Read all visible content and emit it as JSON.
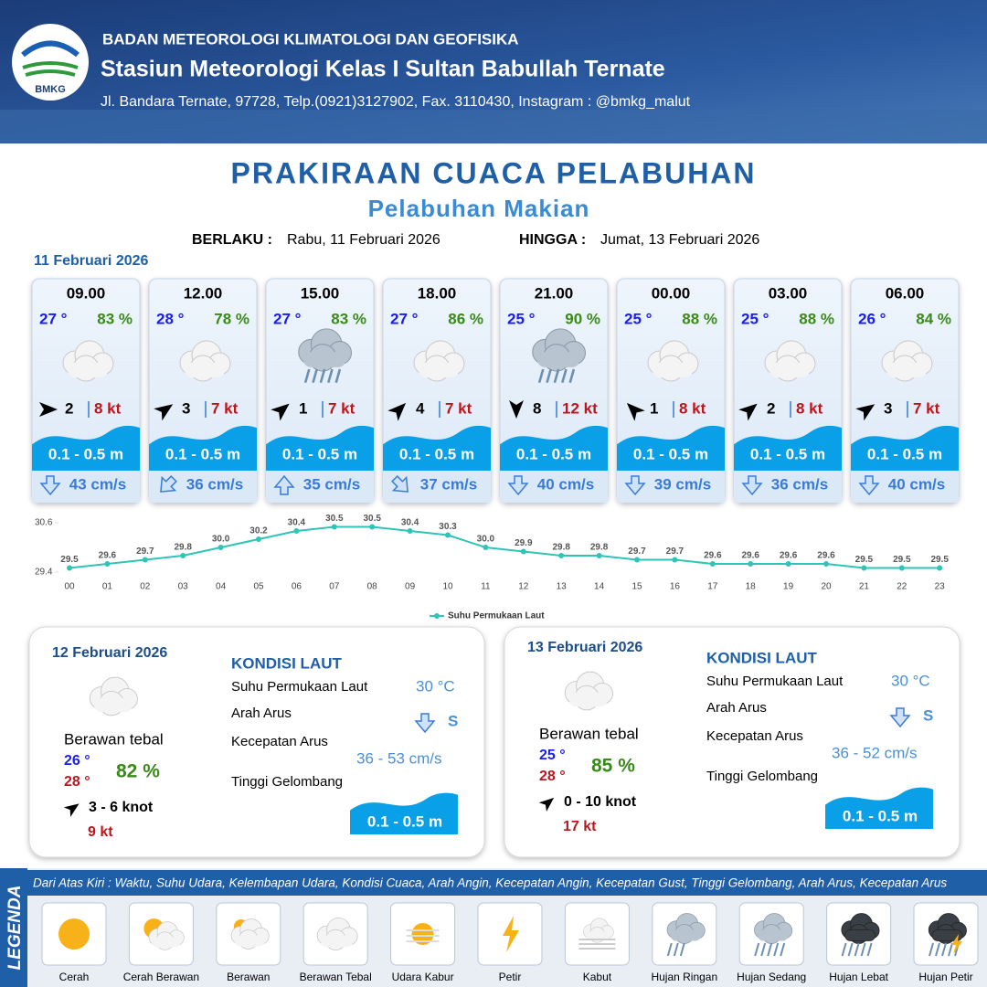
{
  "header": {
    "logo": "BMKG",
    "agency": "BADAN METEOROLOGI KLIMATOLOGI DAN GEOFISIKA",
    "station": "Stasiun Meteorologi Kelas I Sultan Babullah Ternate",
    "address": "Jl. Bandara Ternate, 97728, Telp.(0921)3127902, Fax. 3110430, Instagram : @bmkg_malut"
  },
  "title": "PRAKIRAAN CUACA PELABUHAN",
  "subtitle": "Pelabuhan Makian",
  "validity": {
    "from_label": "BERLAKU :",
    "from": "Rabu, 11 Februari 2026",
    "to_label": "HINGGA :",
    "to": "Jumat, 13 Februari 2026"
  },
  "forecast": {
    "date": "11 Februari 2026",
    "cards": [
      {
        "time": "09.00",
        "temp": "27 °",
        "humidity": "83 %",
        "weather": "cloudy",
        "wind_heading": 0,
        "wind": "2",
        "gust": "8 kt",
        "wave": "0.1 - 0.5 m",
        "current_heading": 0,
        "current": "43 cm/s"
      },
      {
        "time": "12.00",
        "temp": "28 °",
        "humidity": "78 %",
        "weather": "cloudy",
        "wind_heading": -35,
        "wind": "3",
        "gust": "7 kt",
        "wave": "0.1 - 0.5 m",
        "current_heading": 45,
        "current": "36 cm/s"
      },
      {
        "time": "15.00",
        "temp": "27 °",
        "humidity": "83 %",
        "weather": "rain",
        "wind_heading": -40,
        "wind": "1",
        "gust": "7 kt",
        "wave": "0.1 - 0.5 m",
        "current_heading": 180,
        "current": "35 cm/s"
      },
      {
        "time": "18.00",
        "temp": "27 °",
        "humidity": "86 %",
        "weather": "cloudy",
        "wind_heading": -45,
        "wind": "4",
        "gust": "7 kt",
        "wave": "0.1 - 0.5 m",
        "current_heading": -45,
        "current": "37 cm/s"
      },
      {
        "time": "21.00",
        "temp": "25 °",
        "humidity": "90 %",
        "weather": "rain",
        "wind_heading": 90,
        "wind": "8",
        "gust": "12 kt",
        "wave": "0.1 - 0.5 m",
        "current_heading": 0,
        "current": "40 cm/s"
      },
      {
        "time": "00.00",
        "temp": "25 °",
        "humidity": "88 %",
        "weather": "cloudy",
        "wind_heading": -135,
        "wind": "1",
        "gust": "8 kt",
        "wave": "0.1 - 0.5 m",
        "current_heading": 0,
        "current": "39 cm/s"
      },
      {
        "time": "03.00",
        "temp": "25 °",
        "humidity": "88 %",
        "weather": "cloudy",
        "wind_heading": -40,
        "wind": "2",
        "gust": "8 kt",
        "wave": "0.1 - 0.5 m",
        "current_heading": 0,
        "current": "36 cm/s"
      },
      {
        "time": "06.00",
        "temp": "26 °",
        "humidity": "84 %",
        "weather": "cloudy",
        "wind_heading": -35,
        "wind": "3",
        "gust": "7 kt",
        "wave": "0.1 - 0.5 m",
        "current_heading": 0,
        "current": "40 cm/s"
      }
    ]
  },
  "chart_data": {
    "type": "line",
    "categories": [
      "00",
      "01",
      "02",
      "03",
      "04",
      "05",
      "06",
      "07",
      "08",
      "09",
      "10",
      "11",
      "12",
      "13",
      "14",
      "15",
      "16",
      "17",
      "18",
      "19",
      "20",
      "21",
      "22",
      "23"
    ],
    "series": [
      {
        "name": "Suhu Permukaan Laut",
        "color": "#2ec4b6",
        "values": [
          29.5,
          29.6,
          29.7,
          29.8,
          30.0,
          30.2,
          30.4,
          30.5,
          30.5,
          30.4,
          30.3,
          30.0,
          29.9,
          29.8,
          29.8,
          29.7,
          29.7,
          29.6,
          29.6,
          29.6,
          29.6,
          29.5,
          29.5,
          29.5
        ],
        "value_labels": [
          "29.5",
          "29.6",
          "29.7",
          "29.8",
          "30.0",
          "30.2",
          "30.4",
          "30.5",
          "30.5",
          "30.4",
          "30.3",
          "30.0",
          "29.9",
          "29.8",
          "29.8",
          "29.7",
          "29.7",
          "29.6",
          "29.6",
          "29.6",
          "29.6",
          "29.5",
          "29.5",
          "29.5"
        ]
      }
    ],
    "ylim": [
      29.4,
      30.6
    ],
    "yticks": [
      29.4,
      30.6
    ]
  },
  "days": [
    {
      "date": "12 Februari 2026",
      "weather": "Berawan tebal",
      "temp_min": "26 °",
      "temp_max": "28 °",
      "humidity": "82 %",
      "wind_heading": -35,
      "wind": "3  - 6 knot",
      "gust": "9 kt",
      "sea_title": "KONDISI LAUT",
      "sst_label": "Suhu Permukaan Laut",
      "sst": "30 °C",
      "current_dir_label": "Arah Arus",
      "current_dir": "S",
      "current_speed_label": "Kecepatan Arus",
      "current_speed": "36  - 53 cm/s",
      "wave_label": "Tinggi Gelombang",
      "wave": "0.1 - 0.5 m"
    },
    {
      "date": "13 Februari 2026",
      "weather": "Berawan tebal",
      "temp_min": "25 °",
      "temp_max": "28 °",
      "humidity": "85 %",
      "wind_heading": -40,
      "wind": "0  - 10 knot",
      "gust": "17 kt",
      "sea_title": "KONDISI LAUT",
      "sst_label": "Suhu Permukaan Laut",
      "sst": "30 °C",
      "current_dir_label": "Arah Arus",
      "current_dir": "S",
      "current_speed_label": "Kecepatan Arus",
      "current_speed": "36  - 52 cm/s",
      "wave_label": "Tinggi Gelombang",
      "wave": "0.1 - 0.5 m"
    }
  ],
  "legend": {
    "title": "LEGENDA",
    "description": "Dari Atas Kiri : Waktu, Suhu Udara, Kelembapan Udara, Kondisi Cuaca, Arah Angin, Kecepatan Angin, Kecepatan Gust, Tinggi Gelombang, Arah Arus, Kecepatan Arus",
    "items": [
      "Cerah",
      "Cerah Berawan",
      "Berawan",
      "Berawan Tebal",
      "Udara Kabur",
      "Petir",
      "Kabut",
      "Hujan Ringan",
      "Hujan Sedang",
      "Hujan Lebat",
      "Hujan Petir"
    ]
  }
}
